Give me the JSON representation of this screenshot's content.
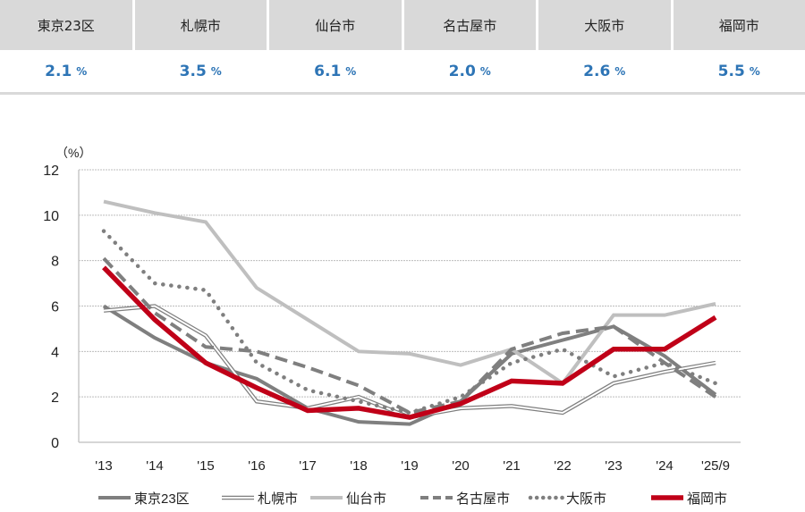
{
  "summary": {
    "items": [
      {
        "city": "東京23区",
        "value": "2.1",
        "unit": "%"
      },
      {
        "city": "札幌市",
        "value": "3.5",
        "unit": "%"
      },
      {
        "city": "仙台市",
        "value": "6.1",
        "unit": "%"
      },
      {
        "city": "名古屋市",
        "value": "2.0",
        "unit": "%"
      },
      {
        "city": "大阪市",
        "value": "2.6",
        "unit": "%"
      },
      {
        "city": "福岡市",
        "value": "5.5",
        "unit": "%"
      }
    ],
    "value_color": "#2e75b6"
  },
  "chart_data": {
    "type": "line",
    "title": "",
    "ylabel": "（%）",
    "xlabel": "",
    "ylim": [
      0,
      12
    ],
    "yticks": [
      "0",
      "2",
      "4",
      "6",
      "8",
      "10",
      "12"
    ],
    "categories": [
      "'13",
      "'14",
      "'15",
      "'16",
      "'17",
      "'18",
      "'19",
      "'20",
      "'21",
      "'22",
      "'23",
      "'24",
      "'25/9"
    ],
    "grid": true,
    "legend_position": "bottom",
    "series": [
      {
        "name": "東京23区",
        "style": "solid",
        "color": "#7f7f7f",
        "values": [
          6.0,
          4.6,
          3.5,
          2.8,
          1.5,
          0.9,
          0.8,
          1.8,
          3.9,
          4.5,
          5.1,
          3.8,
          2.1
        ]
      },
      {
        "name": "札幌市",
        "style": "double",
        "color": "#7f7f7f",
        "values": [
          5.8,
          6.0,
          4.7,
          1.8,
          1.5,
          2.0,
          1.1,
          1.5,
          1.6,
          1.3,
          2.6,
          3.1,
          3.5
        ]
      },
      {
        "name": "仙台市",
        "style": "solid",
        "color": "#bfbfbf",
        "values": [
          10.6,
          10.1,
          9.7,
          6.8,
          5.4,
          4.0,
          3.9,
          3.4,
          4.1,
          2.6,
          5.6,
          5.6,
          6.1
        ]
      },
      {
        "name": "名古屋市",
        "style": "dashed",
        "color": "#7f7f7f",
        "values": [
          8.1,
          5.7,
          4.2,
          4.0,
          3.3,
          2.5,
          1.3,
          1.8,
          4.1,
          4.8,
          5.1,
          3.5,
          2.0
        ]
      },
      {
        "name": "大阪市",
        "style": "dotted",
        "color": "#7f7f7f",
        "values": [
          9.3,
          7.0,
          6.7,
          3.5,
          2.3,
          1.8,
          1.3,
          2.0,
          3.5,
          4.1,
          2.9,
          3.5,
          2.6
        ]
      },
      {
        "name": "福岡市",
        "style": "solid-thick",
        "color": "#c00018",
        "values": [
          7.7,
          5.4,
          3.5,
          2.4,
          1.4,
          1.5,
          1.1,
          1.7,
          2.7,
          2.6,
          4.1,
          4.1,
          5.5
        ]
      }
    ]
  }
}
